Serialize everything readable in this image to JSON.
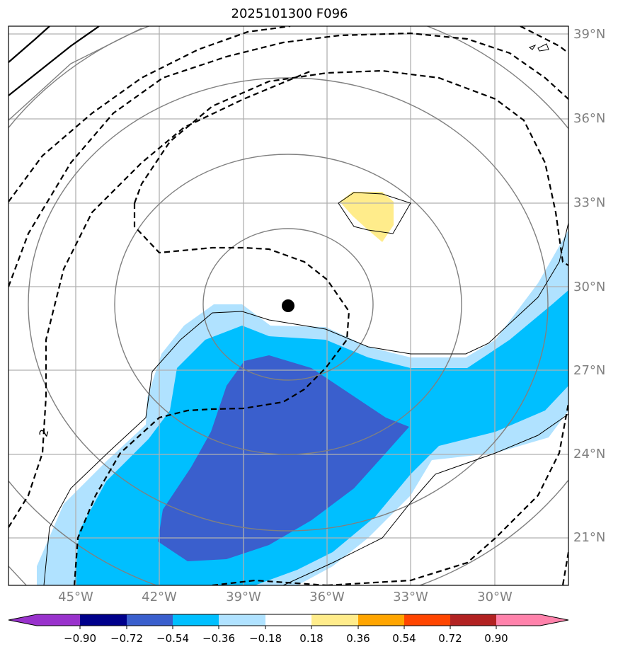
{
  "map": {
    "title": "2025101300 F096",
    "lat_labels": [
      "39°N",
      "36°N",
      "33°N",
      "30°N",
      "27°N",
      "24°N",
      "21°N"
    ],
    "lon_labels": [
      "45°W",
      "42°W",
      "39°W",
      "36°W",
      "33°W",
      "30°W"
    ],
    "contour_label": "2",
    "center_marker": "storm-center"
  },
  "colorbar": {
    "ticks": [
      "−0.90",
      "−0.72",
      "−0.54",
      "−0.36",
      "−0.18",
      "0.18",
      "0.36",
      "0.54",
      "0.72",
      "0.90"
    ],
    "colors": [
      "#9932cc",
      "#00008b",
      "#3a5fcd",
      "#00bfff",
      "#b0e2ff",
      "#ffffff",
      "#ffec8b",
      "#ffa500",
      "#ff4500",
      "#b22222",
      "#ff82ab"
    ]
  }
}
